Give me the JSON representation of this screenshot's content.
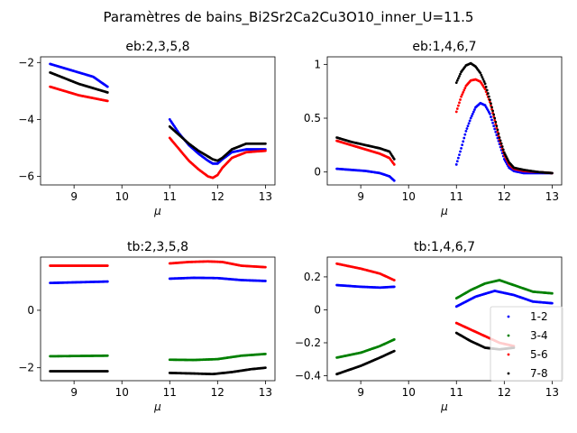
{
  "figure": {
    "suptitle": "Paramètres de bains_Bi2Sr2Ca2Cu3O10_inner_U=11.5"
  },
  "chart_data": [
    {
      "type": "scatter",
      "title": "eb:2,3,5,8",
      "xlabel": "μ",
      "ylabel": "",
      "xlim": [
        8.3,
        13.2
      ],
      "ylim": [
        -6.3,
        -1.8
      ],
      "xticks": [
        9,
        10,
        11,
        12,
        13
      ],
      "yticks": [
        -6,
        -4,
        -2
      ],
      "grid": false,
      "series": [
        {
          "color": "#0000ff",
          "segments": [
            {
              "x": [
                8.5,
                8.8,
                9.1,
                9.4,
                9.7
              ],
              "y": [
                -2.05,
                -2.2,
                -2.35,
                -2.5,
                -2.85
              ]
            },
            {
              "x": [
                11.0,
                11.2,
                11.4,
                11.6,
                11.8,
                11.9,
                12.0,
                12.1,
                12.3,
                12.6,
                13.0
              ],
              "y": [
                -4.0,
                -4.5,
                -4.9,
                -5.2,
                -5.45,
                -5.55,
                -5.55,
                -5.4,
                -5.15,
                -5.05,
                -5.05
              ]
            }
          ]
        },
        {
          "color": "#ff0000",
          "segments": [
            {
              "x": [
                8.5,
                8.8,
                9.1,
                9.4,
                9.7
              ],
              "y": [
                -2.85,
                -3.0,
                -3.15,
                -3.25,
                -3.35
              ]
            },
            {
              "x": [
                11.0,
                11.2,
                11.4,
                11.6,
                11.8,
                11.9,
                12.0,
                12.1,
                12.3,
                12.6,
                13.0
              ],
              "y": [
                -4.65,
                -5.05,
                -5.45,
                -5.75,
                -6.0,
                -6.05,
                -5.95,
                -5.7,
                -5.35,
                -5.15,
                -5.1
              ]
            }
          ]
        },
        {
          "color": "#000000",
          "segments": [
            {
              "x": [
                8.5,
                8.8,
                9.1,
                9.4,
                9.7
              ],
              "y": [
                -2.35,
                -2.55,
                -2.75,
                -2.9,
                -3.05
              ]
            },
            {
              "x": [
                11.0,
                11.2,
                11.4,
                11.6,
                11.8,
                11.9,
                12.0,
                12.1,
                12.3,
                12.6,
                13.0
              ],
              "y": [
                -4.25,
                -4.55,
                -4.85,
                -5.1,
                -5.3,
                -5.4,
                -5.45,
                -5.35,
                -5.05,
                -4.85,
                -4.85
              ]
            }
          ]
        }
      ]
    },
    {
      "type": "scatter",
      "title": "eb:1,4,6,7",
      "xlabel": "μ",
      "ylabel": "",
      "xlim": [
        8.3,
        13.2
      ],
      "ylim": [
        -0.12,
        1.07
      ],
      "xticks": [
        9,
        10,
        11,
        12,
        13
      ],
      "yticks": [
        0.0,
        0.5,
        1.0
      ],
      "grid": false,
      "series": [
        {
          "color": "#0000ff",
          "segments": [
            {
              "x": [
                8.5,
                8.8,
                9.1,
                9.4,
                9.6,
                9.7
              ],
              "y": [
                0.03,
                0.02,
                0.01,
                -0.01,
                -0.04,
                -0.08
              ]
            },
            {
              "x": [
                11.0,
                11.1,
                11.2,
                11.3,
                11.4,
                11.5,
                11.6,
                11.7,
                11.8,
                11.9,
                12.0,
                12.1,
                12.2,
                12.4,
                12.7,
                13.0
              ],
              "y": [
                0.07,
                0.22,
                0.38,
                0.5,
                0.6,
                0.64,
                0.62,
                0.54,
                0.4,
                0.26,
                0.12,
                0.04,
                0.01,
                -0.01,
                -0.01,
                -0.01
              ]
            }
          ]
        },
        {
          "color": "#ff0000",
          "segments": [
            {
              "x": [
                8.5,
                8.8,
                9.1,
                9.4,
                9.6,
                9.7
              ],
              "y": [
                0.29,
                0.25,
                0.21,
                0.17,
                0.13,
                0.07
              ]
            },
            {
              "x": [
                11.0,
                11.1,
                11.2,
                11.3,
                11.4,
                11.5,
                11.6,
                11.7,
                11.8,
                11.9,
                12.0,
                12.1,
                12.2,
                12.4,
                12.7,
                13.0
              ],
              "y": [
                0.56,
                0.7,
                0.8,
                0.85,
                0.86,
                0.84,
                0.77,
                0.65,
                0.48,
                0.3,
                0.16,
                0.07,
                0.03,
                0.01,
                0.0,
                -0.01
              ]
            }
          ]
        },
        {
          "color": "#000000",
          "segments": [
            {
              "x": [
                8.5,
                8.8,
                9.1,
                9.4,
                9.6,
                9.7
              ],
              "y": [
                0.32,
                0.28,
                0.25,
                0.22,
                0.19,
                0.12
              ]
            },
            {
              "x": [
                11.0,
                11.1,
                11.2,
                11.3,
                11.4,
                11.5,
                11.6,
                11.7,
                11.8,
                11.9,
                12.0,
                12.1,
                12.2,
                12.4,
                12.7,
                13.0
              ],
              "y": [
                0.83,
                0.93,
                0.99,
                1.01,
                0.98,
                0.92,
                0.82,
                0.67,
                0.5,
                0.32,
                0.18,
                0.09,
                0.04,
                0.02,
                0.0,
                -0.01
              ]
            }
          ]
        }
      ]
    },
    {
      "type": "scatter",
      "title": "tb:2,3,5,8",
      "xlabel": "μ",
      "ylabel": "",
      "xlim": [
        8.3,
        13.2
      ],
      "ylim": [
        -2.45,
        1.85
      ],
      "xticks": [
        9,
        10,
        11,
        12,
        13
      ],
      "yticks": [
        -2,
        0
      ],
      "grid": false,
      "series": [
        {
          "color": "#ff0000",
          "segments": [
            {
              "x": [
                8.5,
                9.7
              ],
              "y": [
                1.55,
                1.55
              ]
            },
            {
              "x": [
                11.0,
                11.4,
                11.8,
                12.1,
                12.5,
                13.0
              ],
              "y": [
                1.63,
                1.68,
                1.7,
                1.68,
                1.55,
                1.5
              ]
            }
          ]
        },
        {
          "color": "#0000ff",
          "segments": [
            {
              "x": [
                8.5,
                9.7
              ],
              "y": [
                0.95,
                1.0
              ]
            },
            {
              "x": [
                11.0,
                11.5,
                12.0,
                12.5,
                13.0
              ],
              "y": [
                1.1,
                1.13,
                1.12,
                1.05,
                1.02
              ]
            }
          ]
        },
        {
          "color": "#008000",
          "segments": [
            {
              "x": [
                8.5,
                9.7
              ],
              "y": [
                -1.6,
                -1.58
              ]
            },
            {
              "x": [
                11.0,
                11.5,
                12.0,
                12.5,
                13.0
              ],
              "y": [
                -1.72,
                -1.73,
                -1.7,
                -1.58,
                -1.52
              ]
            }
          ]
        },
        {
          "color": "#000000",
          "segments": [
            {
              "x": [
                8.5,
                9.7
              ],
              "y": [
                -2.12,
                -2.12
              ]
            },
            {
              "x": [
                11.0,
                11.5,
                11.9,
                12.3,
                12.7,
                13.0
              ],
              "y": [
                -2.18,
                -2.2,
                -2.22,
                -2.15,
                -2.05,
                -2.0
              ]
            }
          ]
        }
      ]
    },
    {
      "type": "scatter",
      "title": "tb:1,4,6,7",
      "xlabel": "μ",
      "ylabel": "",
      "xlim": [
        8.3,
        13.2
      ],
      "ylim": [
        -0.43,
        0.32
      ],
      "xticks": [
        9,
        10,
        11,
        12,
        13
      ],
      "yticks": [
        -0.4,
        -0.2,
        0.0,
        0.2
      ],
      "grid": false,
      "legend": {
        "placement": "lower-right",
        "entries": [
          "1-2",
          "3-4",
          "5-6",
          "7-8"
        ]
      },
      "series": [
        {
          "name": "1-2",
          "color": "#0000ff",
          "segments": [
            {
              "x": [
                8.5,
                9.0,
                9.4,
                9.7
              ],
              "y": [
                0.15,
                0.14,
                0.135,
                0.14
              ]
            },
            {
              "x": [
                11.0,
                11.4,
                11.8,
                12.2,
                12.6,
                13.0
              ],
              "y": [
                0.02,
                0.08,
                0.115,
                0.09,
                0.05,
                0.04
              ]
            }
          ]
        },
        {
          "name": "3-4",
          "color": "#008000",
          "segments": [
            {
              "x": [
                8.5,
                9.0,
                9.4,
                9.7
              ],
              "y": [
                -0.29,
                -0.26,
                -0.22,
                -0.18
              ]
            },
            {
              "x": [
                11.0,
                11.3,
                11.6,
                11.9,
                12.2,
                12.6,
                13.0
              ],
              "y": [
                0.07,
                0.12,
                0.16,
                0.18,
                0.15,
                0.11,
                0.1
              ]
            }
          ]
        },
        {
          "name": "5-6",
          "color": "#ff0000",
          "segments": [
            {
              "x": [
                8.5,
                9.0,
                9.4,
                9.7
              ],
              "y": [
                0.28,
                0.25,
                0.22,
                0.18
              ]
            },
            {
              "x": [
                11.0,
                11.3,
                11.6,
                11.9,
                12.2
              ],
              "y": [
                -0.08,
                -0.12,
                -0.16,
                -0.2,
                -0.22
              ]
            }
          ]
        },
        {
          "name": "7-8",
          "color": "#000000",
          "segments": [
            {
              "x": [
                8.5,
                9.0,
                9.4,
                9.7
              ],
              "y": [
                -0.39,
                -0.34,
                -0.29,
                -0.25
              ]
            },
            {
              "x": [
                11.0,
                11.3,
                11.6,
                11.9,
                12.2
              ],
              "y": [
                -0.14,
                -0.19,
                -0.23,
                -0.24,
                -0.23
              ]
            }
          ]
        }
      ]
    }
  ]
}
